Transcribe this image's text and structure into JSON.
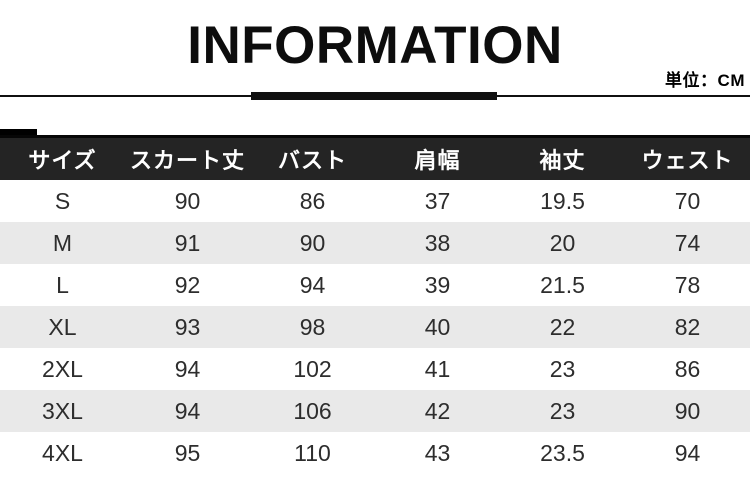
{
  "header": {
    "title": "INFORMATION",
    "unit_label": "単位：CM"
  },
  "table": {
    "columns": [
      "サイズ",
      "スカート丈",
      "バスト",
      "肩幅",
      "袖丈",
      "ウェスト"
    ],
    "rows": [
      [
        "S",
        "90",
        "86",
        "37",
        "19.5",
        "70"
      ],
      [
        "M",
        "91",
        "90",
        "38",
        "20",
        "74"
      ],
      [
        "L",
        "92",
        "94",
        "39",
        "21.5",
        "78"
      ],
      [
        "XL",
        "93",
        "98",
        "40",
        "22",
        "82"
      ],
      [
        "2XL",
        "94",
        "102",
        "41",
        "23",
        "86"
      ],
      [
        "3XL",
        "94",
        "106",
        "42",
        "23",
        "90"
      ],
      [
        "4XL",
        "95",
        "110",
        "43",
        "23.5",
        "94"
      ]
    ]
  },
  "colors": {
    "header_bg": "#242424",
    "header_text": "#ffffff",
    "stripe_row_bg": "#e9e9e9",
    "accent": "#101010"
  },
  "chart_data": {
    "type": "table",
    "title": "INFORMATION",
    "unit": "CM",
    "columns": [
      "サイズ",
      "スカート丈",
      "バスト",
      "肩幅",
      "袖丈",
      "ウェスト"
    ],
    "rows": [
      {
        "サイズ": "S",
        "スカート丈": 90,
        "バスト": 86,
        "肩幅": 37,
        "袖丈": 19.5,
        "ウェスト": 70
      },
      {
        "サイズ": "M",
        "スカート丈": 91,
        "バスト": 90,
        "肩幅": 38,
        "袖丈": 20,
        "ウェスト": 74
      },
      {
        "サイズ": "L",
        "スカート丈": 92,
        "バスト": 94,
        "肩幅": 39,
        "袖丈": 21.5,
        "ウェスト": 78
      },
      {
        "サイズ": "XL",
        "スカート丈": 93,
        "バスト": 98,
        "肩幅": 40,
        "袖丈": 22,
        "ウェスト": 82
      },
      {
        "サイズ": "2XL",
        "スカート丈": 94,
        "バスト": 102,
        "肩幅": 41,
        "袖丈": 23,
        "ウェスト": 86
      },
      {
        "サイズ": "3XL",
        "スカート丈": 94,
        "バスト": 106,
        "肩幅": 42,
        "袖丈": 23,
        "ウェスト": 90
      },
      {
        "サイズ": "4XL",
        "スカート丈": 95,
        "バスト": 110,
        "肩幅": 43,
        "袖丈": 23.5,
        "ウェスト": 94
      }
    ],
    "layout": {
      "striped_rows": true,
      "header_style": "dark",
      "cell_alignment": "center"
    }
  }
}
